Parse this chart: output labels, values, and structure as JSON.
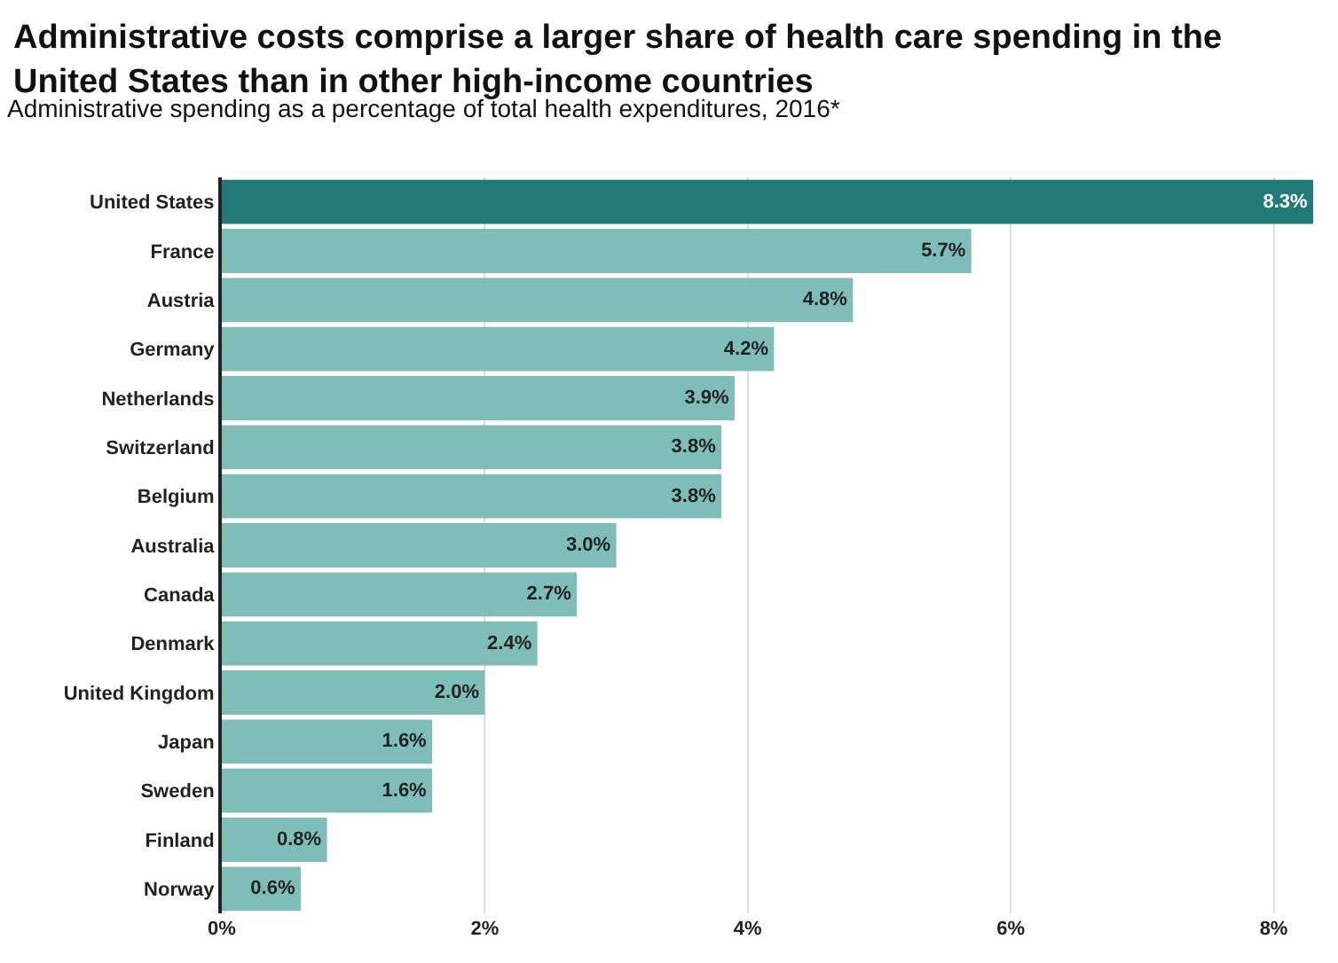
{
  "chart_data": {
    "type": "bar",
    "orientation": "horizontal",
    "title": "Administrative costs comprise a larger share of health care spending in the United States than in other high-income countries",
    "subtitle": "Administrative spending as a percentage of total health expenditures, 2016*",
    "categories": [
      "United States",
      "France",
      "Austria",
      "Germany",
      "Netherlands",
      "Switzerland",
      "Belgium",
      "Australia",
      "Canada",
      "Denmark",
      "United Kingdom",
      "Japan",
      "Sweden",
      "Finland",
      "Norway"
    ],
    "values": [
      8.3,
      5.7,
      4.8,
      4.2,
      3.9,
      3.8,
      3.8,
      3.0,
      2.7,
      2.4,
      2.0,
      1.6,
      1.6,
      0.8,
      0.6
    ],
    "colors": [
      "#217a75",
      "#7fbdb9",
      "#7fbdb9",
      "#7fbdb9",
      "#7fbdb9",
      "#7fbdb9",
      "#7fbdb9",
      "#7fbdb9",
      "#7fbdb9",
      "#7fbdb9",
      "#7fbdb9",
      "#7fbdb9",
      "#7fbdb9",
      "#7fbdb9",
      "#7fbdb9"
    ],
    "value_labels": [
      "8.3%",
      "5.7%",
      "4.8%",
      "4.2%",
      "3.9%",
      "3.8%",
      "3.8%",
      "3.0%",
      "2.7%",
      "2.4%",
      "2.0%",
      "1.6%",
      "1.6%",
      "0.8%",
      "0.6%"
    ],
    "xlim": [
      0,
      8.3
    ],
    "xticks": [
      {
        "value": 0,
        "label": "0%"
      },
      {
        "value": 2,
        "label": "2%"
      },
      {
        "value": 4,
        "label": "4%"
      },
      {
        "value": 6,
        "label": "6%"
      },
      {
        "value": 8,
        "label": "8%"
      }
    ],
    "grid": "x"
  }
}
